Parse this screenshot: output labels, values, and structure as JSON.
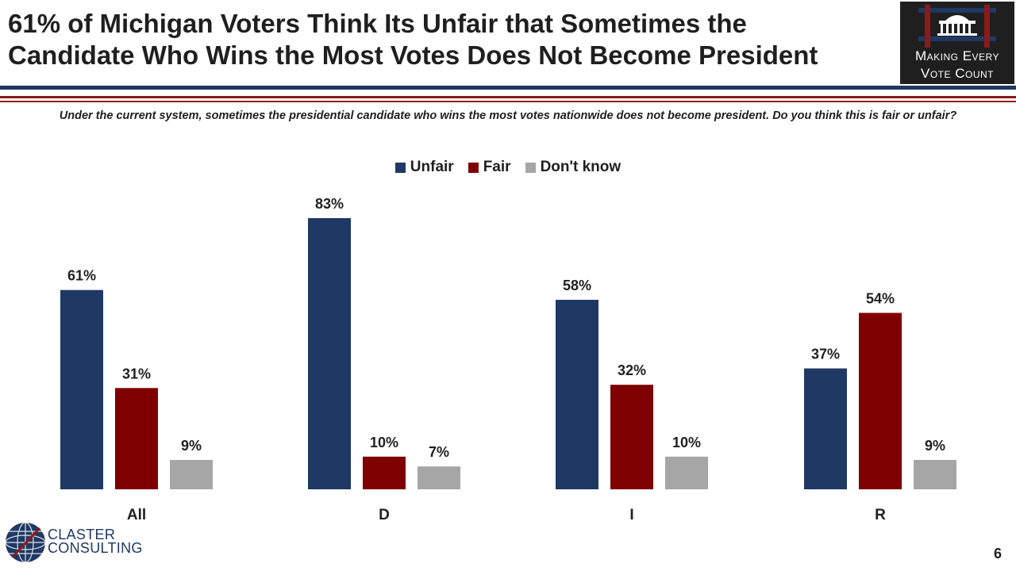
{
  "header": {
    "title_line1": "61% of Michigan Voters Think Its Unfair that Sometimes the",
    "title_line2": "Candidate Who Wins the Most Votes Does Not Become President"
  },
  "logo": {
    "line1": "Making Every",
    "line2": "Vote Count"
  },
  "question": "Under the current system, sometimes the presidential candidate who wins the most votes nationwide does not become president. Do you think this is fair or unfair?",
  "footer": {
    "brand_line1": "CLASTER",
    "brand_line2": "CONSULTING",
    "page_number": "6"
  },
  "colors": {
    "unfair": "#1f3864",
    "fair": "#7f0000",
    "dont_know": "#a6a6a6",
    "rule_navy": "#1f3864",
    "rule_red": "#8b1a1a"
  },
  "chart_data": {
    "type": "bar",
    "categories": [
      "All",
      "D",
      "I",
      "R"
    ],
    "series": [
      {
        "name": "Unfair",
        "values": [
          61,
          83,
          58,
          37
        ]
      },
      {
        "name": "Fair",
        "values": [
          31,
          10,
          32,
          54
        ]
      },
      {
        "name": "Don't know",
        "values": [
          9,
          7,
          10,
          9
        ]
      }
    ],
    "value_suffix": "%",
    "ylim": [
      0,
      100
    ],
    "grid": false,
    "legend_position": "top-center"
  }
}
